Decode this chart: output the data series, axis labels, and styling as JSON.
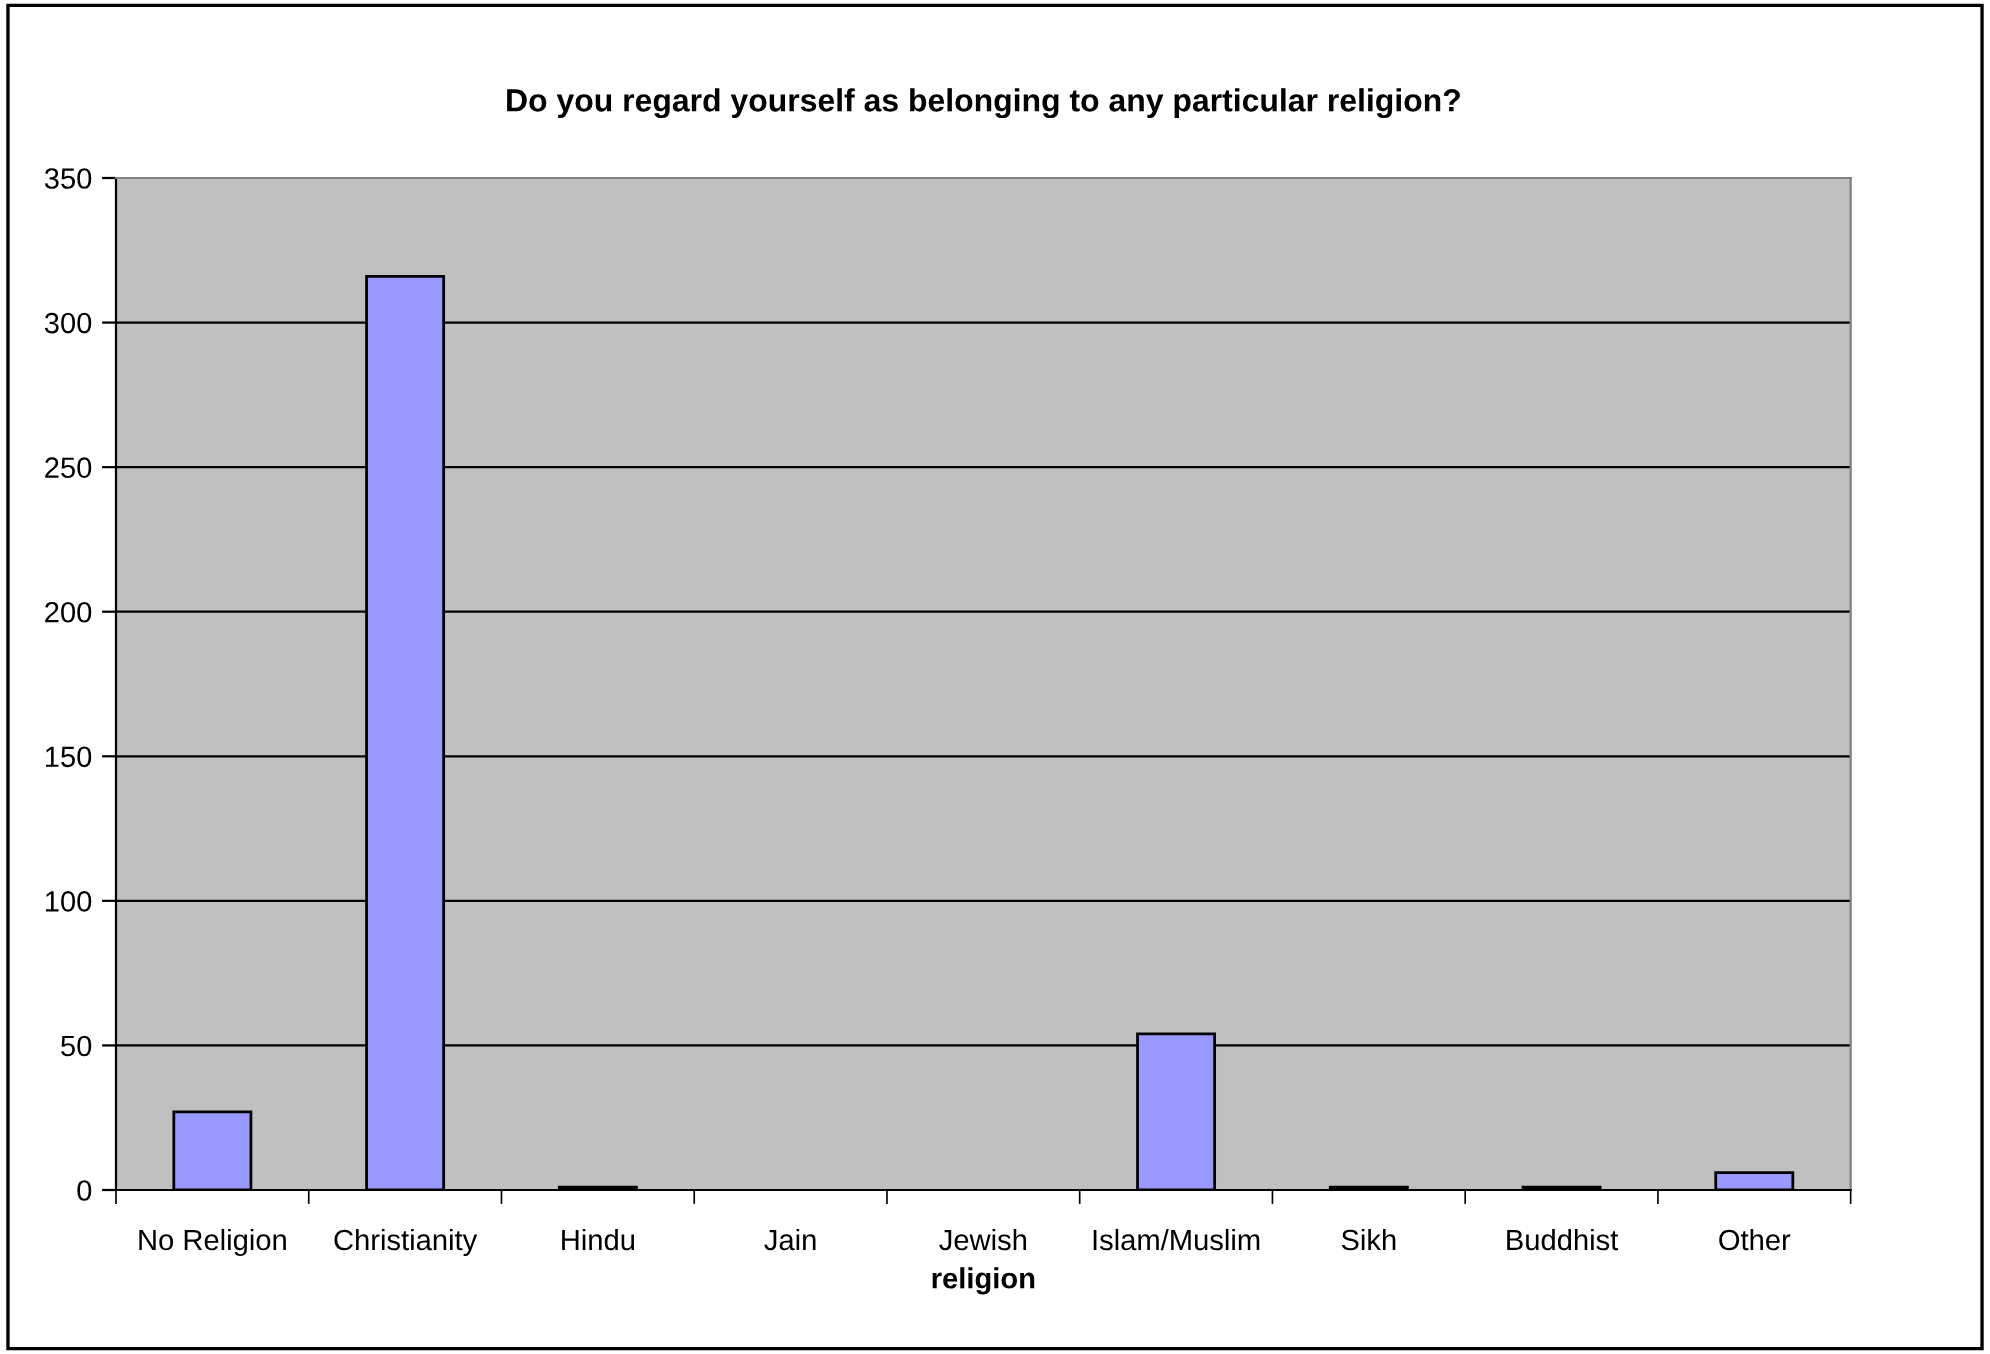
{
  "chart_data": {
    "type": "bar",
    "title": "Do you regard yourself as belonging to any particular religion?",
    "xlabel": "religion",
    "categories": [
      "No Religion",
      "Christianity",
      "Hindu",
      "Jain",
      "Jewish",
      "Islam/Muslim",
      "Sikh",
      "Buddhist",
      "Other"
    ],
    "values": [
      27,
      316,
      1,
      0,
      0,
      54,
      1,
      1,
      6
    ],
    "color": "#9999ff",
    "ylim": [
      0,
      350
    ],
    "yticks": [
      0,
      50,
      100,
      150,
      200,
      250,
      300,
      350
    ],
    "grid": "y",
    "legend": false
  }
}
